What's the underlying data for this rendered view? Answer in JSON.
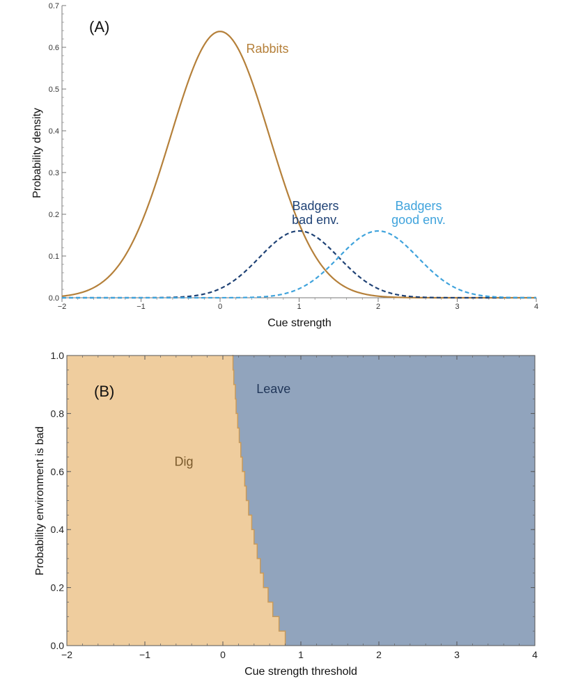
{
  "chart_data": [
    {
      "type": "line",
      "panel_label": "(A)",
      "xlabel": "Cue strength",
      "ylabel": "Probability density",
      "xlim": [
        -2,
        4
      ],
      "ylim": [
        0,
        0.7
      ],
      "x_ticks": [
        -2,
        -1,
        0,
        1,
        2,
        3,
        4
      ],
      "x_tick_labels": [
        "−2",
        "−1",
        "0",
        "1",
        "2",
        "3",
        "4"
      ],
      "y_ticks": [
        0.0,
        0.1,
        0.2,
        0.3,
        0.4,
        0.5,
        0.6,
        0.7
      ],
      "y_tick_labels": [
        "0.0",
        "0.1",
        "0.2",
        "0.3",
        "0.4",
        "0.5",
        "0.6",
        "0.7"
      ],
      "series": [
        {
          "name": "Rabbits",
          "label_lines": [
            "Rabbits"
          ],
          "distribution": "normal",
          "mean": 0,
          "sd": 0.625,
          "peak": 0.638,
          "style": "solid",
          "color": "#b5803a"
        },
        {
          "name": "Badgers bad env.",
          "label_lines": [
            "Badgers",
            "bad env."
          ],
          "distribution": "normal",
          "mean": 1,
          "sd": 0.5,
          "peak": 0.16,
          "style": "dashed",
          "color": "#1f4275"
        },
        {
          "name": "Badgers good env.",
          "label_lines": [
            "Badgers",
            "good env."
          ],
          "distribution": "normal",
          "mean": 2,
          "sd": 0.5,
          "peak": 0.16,
          "style": "dashed",
          "color": "#3fa3dc"
        }
      ]
    },
    {
      "type": "area",
      "panel_label": "(B)",
      "xlabel": "Cue strength threshold",
      "ylabel": "Probability environment is bad",
      "xlim": [
        -2,
        4
      ],
      "ylim": [
        0,
        1
      ],
      "x_ticks": [
        -2,
        -1,
        0,
        1,
        2,
        3,
        4
      ],
      "x_tick_labels": [
        "−2",
        "−1",
        "0",
        "1",
        "2",
        "3",
        "4"
      ],
      "y_ticks": [
        0.0,
        0.2,
        0.4,
        0.6,
        0.8,
        1.0
      ],
      "y_tick_labels": [
        "0.0",
        "0.2",
        "0.4",
        "0.6",
        "0.8",
        "1.0"
      ],
      "regions": [
        {
          "name": "Dig",
          "color": "#efcd9e",
          "label_color": "#7a5a2c",
          "label_at": [
            -0.5,
            0.62
          ]
        },
        {
          "name": "Leave",
          "color": "#91a4bd",
          "label_color": "#1f3558",
          "label_at": [
            0.65,
            0.87
          ]
        }
      ],
      "boundary": {
        "description": "Threshold at which optimal choice switches from Dig to Leave, as a function of probability environment is bad",
        "points": [
          [
            0.8,
            0.0
          ],
          [
            0.72,
            0.05
          ],
          [
            0.64,
            0.1
          ],
          [
            0.58,
            0.15
          ],
          [
            0.52,
            0.2
          ],
          [
            0.48,
            0.25
          ],
          [
            0.44,
            0.3
          ],
          [
            0.4,
            0.35
          ],
          [
            0.37,
            0.4
          ],
          [
            0.33,
            0.45
          ],
          [
            0.3,
            0.5
          ],
          [
            0.28,
            0.55
          ],
          [
            0.25,
            0.6
          ],
          [
            0.23,
            0.65
          ],
          [
            0.21,
            0.7
          ],
          [
            0.19,
            0.75
          ],
          [
            0.17,
            0.8
          ],
          [
            0.16,
            0.85
          ],
          [
            0.14,
            0.9
          ],
          [
            0.13,
            0.95
          ],
          [
            0.12,
            1.0
          ]
        ]
      }
    }
  ]
}
